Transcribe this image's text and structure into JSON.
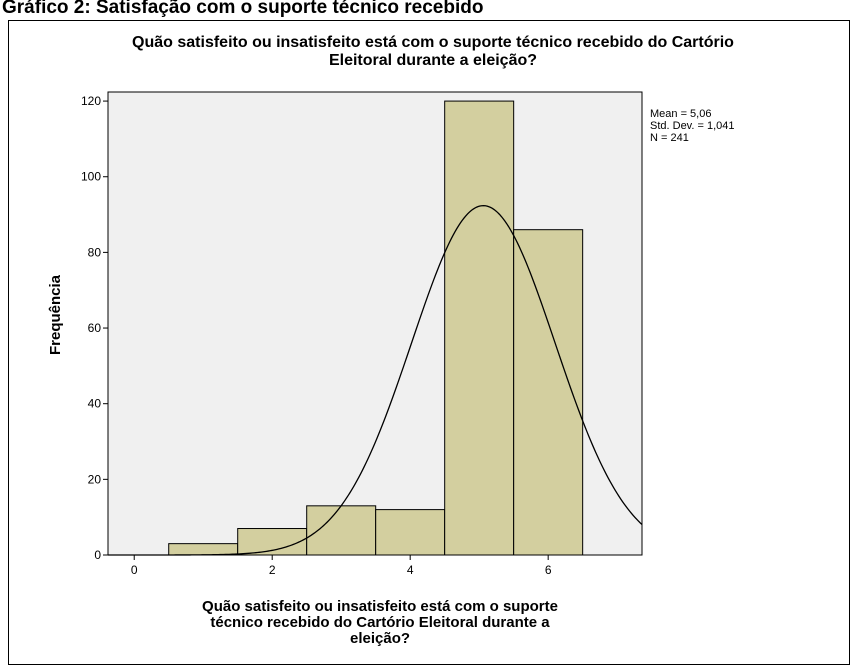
{
  "caption": "Gráfico 2: Satisfação com o suporte técnico recebido",
  "chart_data": {
    "type": "histogram",
    "title": [
      "Quão satisfeito ou insatisfeito está com o suporte técnico recebido do Cartório",
      "Eleitoral durante a eleição?"
    ],
    "x_label": [
      "Quão satisfeito ou insatisfeito está com o suporte",
      "técnico recebido do Cartório Eleitoral durante a",
      "eleição?"
    ],
    "y_label": "Frequência",
    "bins": [
      0.5,
      1.5,
      2.5,
      3.5,
      4.5,
      5.5,
      6.5
    ],
    "values": [
      3,
      7,
      13,
      12,
      120,
      86
    ],
    "color": "#d3cf9f",
    "background": "#f0f0f0",
    "xlim": [
      -0.38,
      7.36
    ],
    "ylim": [
      0,
      122.4
    ],
    "xticks": [
      0,
      2,
      4,
      6
    ],
    "yticks": [
      0,
      20,
      40,
      60,
      80,
      100,
      120
    ],
    "stats": [
      {
        "name": "Mean",
        "value": 5.06,
        "label": "Mean = 5,06"
      },
      {
        "name": "Std. Dev.",
        "value": 1.041,
        "label": "Std. Dev. = 1,041"
      },
      {
        "name": "N",
        "value": 241,
        "label": "N = 241"
      }
    ],
    "normal_curve": true
  }
}
